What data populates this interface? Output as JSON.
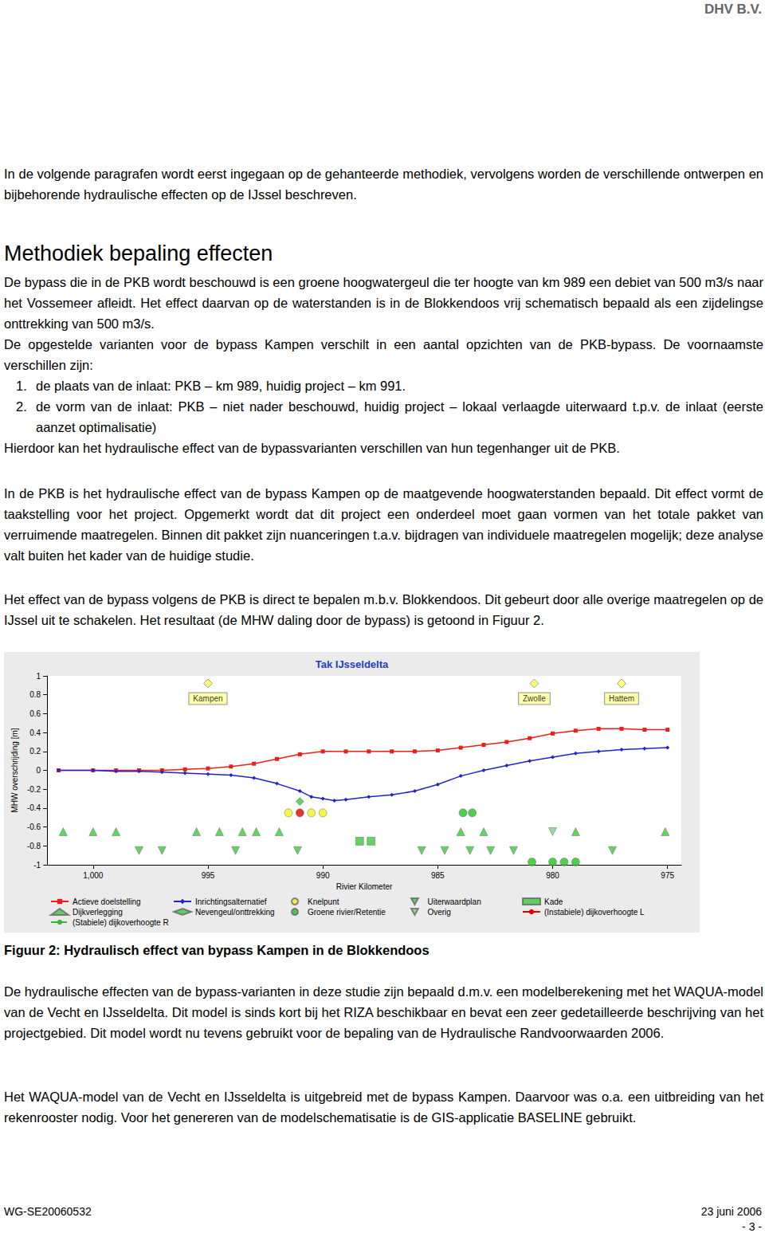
{
  "page": {
    "header": "DHV B.V.",
    "body": [
      {
        "kind": "p",
        "parts": [
          "In de volgende paragrafen wordt eerst ingegaan op de gehanteerde methodiek, vervolgens worden de verschillende ontwerpen en bijbehorende hydraulische effecten op de IJssel beschreven."
        ]
      },
      {
        "kind": "h",
        "text": "Methodiek bepaling effecten"
      },
      {
        "kind": "p",
        "parts": [
          "De bypass die in de PKB wordt beschouwd is een groene hoogwatergeul die ter hoogte van km 989 een debiet van 500 m3/s naar het Vossemeer afleidt. Het effect daarvan op de waterstanden is in de Blokkendoos vrij schematisch bepaald als een zijdelingse onttrekking van 500 m3/s.",
          "De opgestelde varianten voor de bypass Kampen verschilt in een aantal opzichten van de PKB-bypass. De voornaamste verschillen zijn:",
          {
            "list": [
              {
                "label": "1.",
                "text": "de plaats van de inlaat: PKB – km 989, huidig project – km 991."
              },
              {
                "label": "2.",
                "text": "de vorm van de inlaat: PKB – niet nader beschouwd, huidig project – lokaal verlaagde uiterwaard t.p.v. de inlaat (eerste aanzet optimalisatie)"
              }
            ]
          },
          "Hierdoor kan het hydraulische effect van de bypassvarianten verschillen van hun tegenhanger uit de PKB."
        ]
      },
      {
        "kind": "p",
        "parts": [
          "In de PKB is het hydraulische effect van de bypass Kampen op de maatgevende hoogwaterstanden bepaald. Dit effect vormt de taakstelling voor het project. Opgemerkt wordt dat dit project een onderdeel moet gaan vormen van het totale pakket van verruimende maatregelen. Binnen dit pakket zijn nuanceringen t.a.v. bijdragen van individuele maatregelen mogelijk; deze analyse valt buiten het kader van de huidige studie."
        ]
      },
      {
        "kind": "p",
        "parts": [
          "Het effect van de bypass volgens de PKB is direct te bepalen m.b.v. Blokkendoos. Dit gebeurt door alle overige maatregelen op de IJssel uit te schakelen. Het resultaat (de MHW daling door de bypass) is getoond in Figuur 2."
        ]
      },
      {
        "kind": "figure",
        "caption": "Figuur 2: Hydraulisch effect van bypass Kampen in de Blokkendoos"
      },
      {
        "kind": "p",
        "parts": [
          "De hydraulische effecten van de bypass-varianten in deze studie zijn bepaald d.m.v. een modelberekening met het WAQUA-model van de Vecht en IJsseldelta. Dit model is sinds kort bij het RIZA beschikbaar en bevat een zeer gedetailleerde beschrijving van het projectgebied. Dit model wordt nu tevens gebruikt voor de bepaling van de Hydraulische Randvoorwaarden 2006."
        ]
      },
      {
        "kind": "p",
        "parts": [
          "Het WAQUA-model van de Vecht en IJsseldelta is uitgebreid met de bypass Kampen. Daarvoor was o.a. een uitbreiding van het rekenrooster nodig. Voor het genereren van de modelschematisatie is de GIS-applicatie BASELINE gebruikt."
        ]
      }
    ],
    "footer": {
      "reference": "WG-SE20060532",
      "date": "23 juni 2006",
      "page": "- 3 -"
    }
  },
  "chart_data": {
    "type": "line",
    "title": "Tak IJsseldelta",
    "x_label": "Rivier Kilometer",
    "y_label": "MHW overschrijding [m]",
    "xlim": [
      1002,
      974.4
    ],
    "xticks": [
      {
        "value": 1000,
        "label": "1,000"
      },
      995,
      990,
      985,
      980,
      975
    ],
    "ylim": [
      -1,
      1
    ],
    "yticks": [
      1,
      0.8,
      0.6,
      0.4,
      0.2,
      0,
      -0.2,
      -0.4,
      -0.6,
      -0.8,
      -1
    ],
    "grid": false,
    "series": [
      {
        "name": "Actieve doelstelling",
        "type": "line",
        "color": "#e8201c",
        "marker": "square",
        "line_style": "solid",
        "x": [
          1001.5,
          1000,
          999,
          998,
          997,
          996,
          995,
          994,
          993,
          992,
          991,
          990,
          989,
          988,
          987,
          986,
          985,
          984,
          983,
          982,
          981,
          980,
          979,
          978,
          977,
          976,
          975
        ],
        "values": [
          0,
          0,
          0,
          0,
          0,
          0.01,
          0.02,
          0.04,
          0.07,
          0.12,
          0.17,
          0.2,
          0.2,
          0.2,
          0.2,
          0.2,
          0.21,
          0.24,
          0.27,
          0.3,
          0.34,
          0.39,
          0.42,
          0.44,
          0.44,
          0.43,
          0.43
        ]
      },
      {
        "name": "Inrichtingsalternatief",
        "type": "line",
        "color": "#2323c8",
        "marker": "diamond",
        "line_style": "solid",
        "x": [
          1001.5,
          1000,
          999,
          998,
          997,
          996,
          995,
          994,
          993,
          992,
          991,
          990.5,
          990,
          989.5,
          989,
          988,
          987,
          986,
          985,
          984,
          983,
          982,
          981,
          980,
          979,
          978,
          977,
          976,
          975
        ],
        "values": [
          0,
          0,
          -0.01,
          -0.01,
          -0.02,
          -0.03,
          -0.04,
          -0.05,
          -0.08,
          -0.14,
          -0.22,
          -0.28,
          -0.3,
          -0.32,
          -0.31,
          -0.28,
          -0.26,
          -0.22,
          -0.15,
          -0.06,
          0,
          0.05,
          0.1,
          0.14,
          0.18,
          0.2,
          0.22,
          0.23,
          0.24
        ]
      },
      {
        "name": "Knelpunt",
        "type": "scatter",
        "marker": "circle",
        "colors": [
          "#f2f21a",
          "#e00000",
          "#f2f21a",
          "#f2f21a"
        ],
        "x": [
          991.5,
          991.0,
          990.5,
          990.0
        ],
        "values": [
          -0.45,
          -0.45,
          -0.45,
          -0.45
        ]
      },
      {
        "name": "Uiterwaardplan",
        "type": "scatter",
        "marker": "triangle-down",
        "color": "#3cc83c",
        "x": [
          998.0,
          997.0,
          993.8,
          991.1,
          985.7,
          984.7,
          983.6,
          982.7,
          981.7,
          977.4
        ],
        "values": [
          -0.85,
          -0.85,
          -0.85,
          -0.85,
          -0.85,
          -0.85,
          -0.85,
          -0.85,
          -0.85,
          -0.85
        ]
      },
      {
        "name": "Kade",
        "type": "scatter",
        "marker": "square",
        "color": "#3cc83c",
        "x": [
          988.4,
          987.9
        ],
        "values": [
          -0.75,
          -0.75
        ]
      },
      {
        "name": "Dijkverlegging",
        "type": "scatter",
        "marker": "triangle",
        "color": "#3cc83c",
        "x": [
          1001.3,
          1000,
          999.0,
          995.5,
          994.5,
          993.5,
          992.9,
          991.9,
          984.0,
          983.0,
          979.0,
          975.1
        ],
        "values": [
          -0.65,
          -0.65,
          -0.65,
          -0.65,
          -0.65,
          -0.65,
          -0.65,
          -0.65,
          -0.65,
          -0.65,
          -0.65,
          -0.65
        ]
      },
      {
        "name": "Nevengeul/onttrekking",
        "type": "scatter",
        "marker": "diamond",
        "color": "#3cc83c",
        "x": [
          991.0
        ],
        "values": [
          -0.33
        ]
      },
      {
        "name": "Groene rivier/Retentie",
        "type": "scatter",
        "marker": "circle",
        "color": "#22c022",
        "x": [
          983.9,
          983.5,
          980.9,
          980.0,
          979.5,
          979.0
        ],
        "values": [
          -0.45,
          -0.45,
          -0.97,
          -0.97,
          -0.97,
          -0.97
        ]
      },
      {
        "name": "Overig",
        "type": "scatter",
        "marker": "triangle-down",
        "color": "#7fd27f",
        "x": [
          980.0
        ],
        "values": [
          -0.65
        ]
      },
      {
        "name": "(Instabiele) dijkoverhoogte L",
        "type": "line",
        "color": "#e00000",
        "line_style": "solid",
        "x": [],
        "values": []
      },
      {
        "name": "(Stabiele) dijkoverhoogte R",
        "type": "line",
        "color": "#3cb43c",
        "line_style": "dashed",
        "x": [],
        "values": []
      }
    ],
    "annotations": [
      {
        "text": "Kampen",
        "x": 995,
        "y": 0.92
      },
      {
        "text": "Zwolle",
        "x": 980.8,
        "y": 0.92
      },
      {
        "text": "Hattem",
        "x": 977.0,
        "y": 0.92
      }
    ]
  }
}
